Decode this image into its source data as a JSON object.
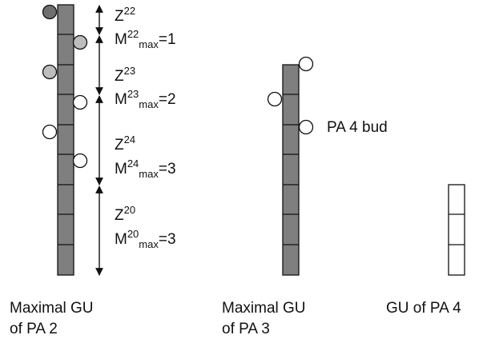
{
  "stems": [
    {
      "id": "pa2",
      "units": 9,
      "fill": "#7f7f7f"
    },
    {
      "id": "pa3",
      "units": 7,
      "fill": "#7f7f7f"
    },
    {
      "id": "pa4",
      "units": 3,
      "fill": "#ffffff"
    }
  ],
  "bud_colors": {
    "dark": "#6f6f6f",
    "light": "#bdbdbd",
    "empty": "#ffffff"
  },
  "zones": [
    {
      "z": "Z",
      "z_sup": "22",
      "m": "M",
      "m_sup": "22",
      "m_sub": "max",
      "m_val": "=1"
    },
    {
      "z": "Z",
      "z_sup": "23",
      "m": "M",
      "m_sup": "23",
      "m_sub": "max",
      "m_val": "=2"
    },
    {
      "z": "Z",
      "z_sup": "24",
      "m": "M",
      "m_sup": "24",
      "m_sub": "max",
      "m_val": "=3"
    },
    {
      "z": "Z",
      "z_sup": "20",
      "m": "M",
      "m_sup": "20",
      "m_sub": "max",
      "m_val": "=3"
    }
  ],
  "pa4_bud_label": "PA 4 bud",
  "captions": {
    "pa2": {
      "line1": "Maximal GU",
      "line2": "of PA 2"
    },
    "pa3": {
      "line1": "Maximal GU",
      "line2": "of PA 3"
    },
    "pa4": {
      "line1": "GU of PA 4"
    }
  }
}
